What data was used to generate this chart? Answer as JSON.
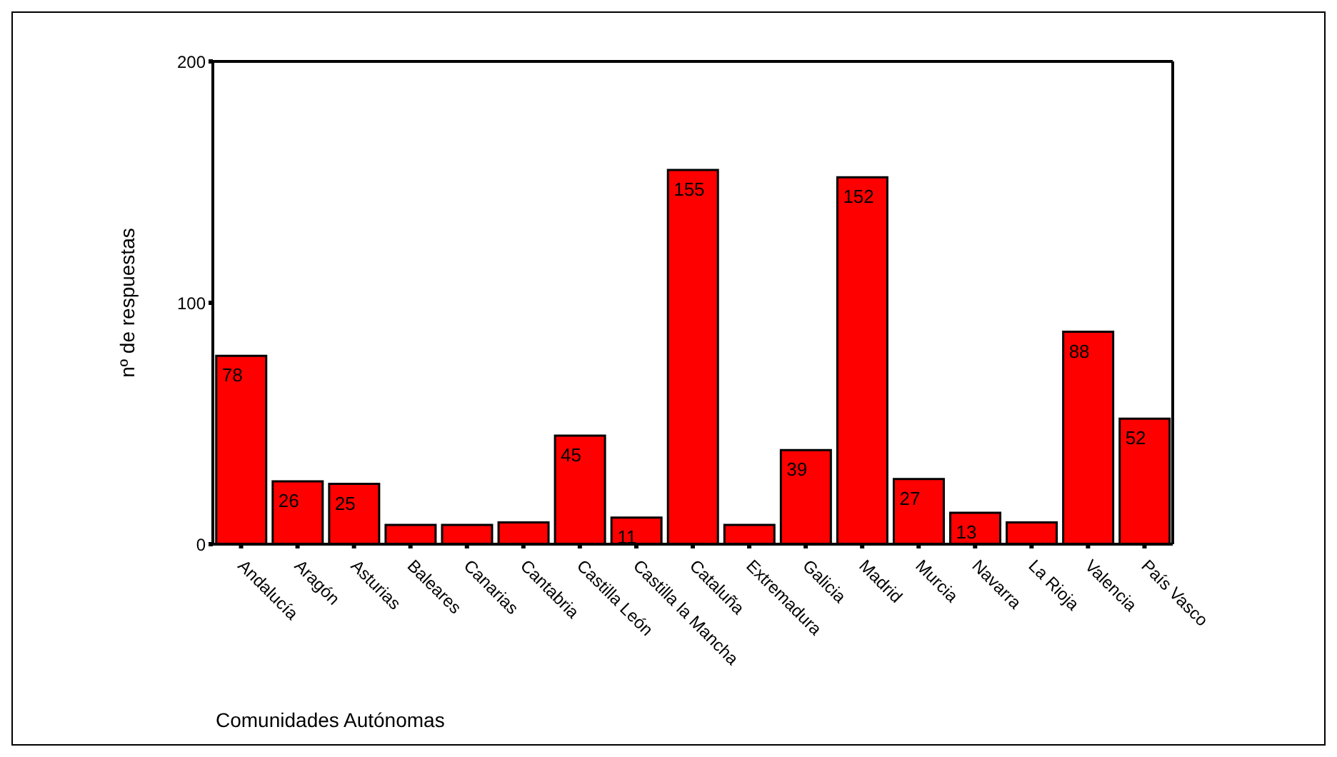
{
  "chart_data": {
    "type": "bar",
    "xlabel": "Comunidades Autónomas",
    "ylabel": "nº de respuestas",
    "categories": [
      "Andalucía",
      "Aragón",
      "Asturias",
      "Baleares",
      "Canarias",
      "Cantabria",
      "Castilla León",
      "Castilla la Mancha",
      "Cataluña",
      "Extremadura",
      "Galicia",
      "Madrid",
      "Murcia",
      "Navarra",
      "La Rioja",
      "Valencia",
      "País Vasco"
    ],
    "values": [
      78,
      26,
      25,
      8,
      8,
      9,
      45,
      11,
      155,
      8,
      39,
      152,
      27,
      13,
      9,
      88,
      52
    ],
    "value_labels": [
      "78",
      "26",
      "25",
      null,
      null,
      null,
      "45",
      "11",
      "155",
      null,
      "39",
      "152",
      "27",
      "13",
      null,
      "88",
      "52"
    ],
    "color": "#ff0000",
    "ylim": [
      0,
      200
    ],
    "yticks": [
      0,
      100,
      200
    ],
    "grid": false
  }
}
